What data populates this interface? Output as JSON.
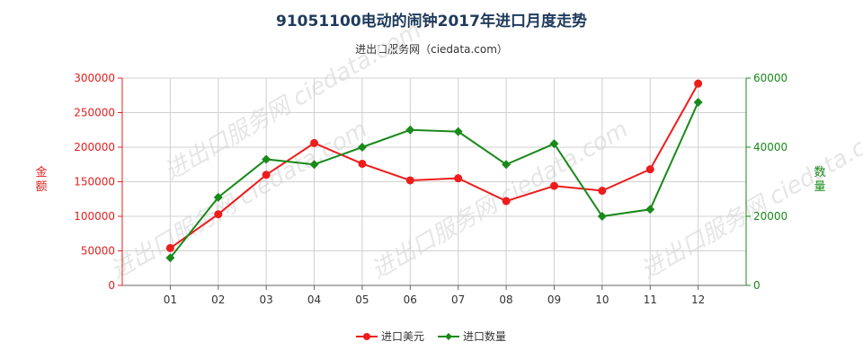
{
  "page": {
    "title": "91051100电动的闹钟2017年进口月度走势",
    "subtitle": "进出口服务网（ciedata.com）",
    "watermark": "进出口服务网 ciedata.com"
  },
  "chart_data": {
    "type": "line",
    "title": "91051100电动的闹钟2017年进口月度走势",
    "categories": [
      "01",
      "02",
      "03",
      "04",
      "05",
      "06",
      "07",
      "08",
      "09",
      "10",
      "11",
      "12"
    ],
    "y_left": {
      "label": "金额",
      "ticks": [
        "0",
        "50000",
        "100000",
        "150000",
        "200000",
        "250000",
        "300000"
      ],
      "range": [
        0,
        300000
      ],
      "color": "#e02020"
    },
    "y_right": {
      "label": "数量",
      "ticks": [
        "0",
        "20000",
        "40000",
        "60000"
      ],
      "range": [
        0,
        60000
      ],
      "color": "#1a8a1a"
    },
    "series": [
      {
        "name": "进口美元",
        "axis": "left",
        "color": "#ee1c1c",
        "values": [
          54000,
          103000,
          160000,
          206000,
          176000,
          152000,
          155000,
          122000,
          144000,
          137000,
          168000,
          292000
        ]
      },
      {
        "name": "进口数量",
        "axis": "right",
        "color": "#1a8a1a",
        "values": [
          8000,
          25500,
          36500,
          35000,
          40000,
          45000,
          44500,
          35000,
          41000,
          20000,
          22000,
          53000
        ]
      }
    ],
    "grid": true,
    "legend_position": "bottom-center"
  }
}
